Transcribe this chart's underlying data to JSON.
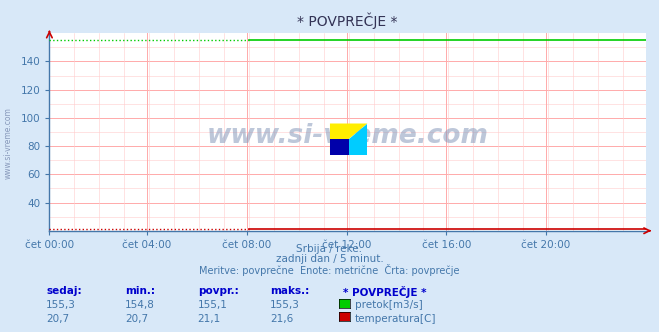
{
  "title": "* POVPREČJE *",
  "background_color": "#d8e8f8",
  "plot_bg_color": "#ffffff",
  "grid_major_color": "#ffaaaa",
  "grid_minor_color": "#ffcccc",
  "tick_color": "#4477aa",
  "watermark": "www.si-vreme.com",
  "watermark_color": "#8899bb",
  "subtitle1": "Srbija / reke.",
  "subtitle2": "zadnji dan / 5 minut.",
  "subtitle3": "Meritve: povprečne  Enote: metrične  Črta: povprečje",
  "flow_color": "#00cc00",
  "temp_color": "#cc0000",
  "x_ticks": [
    "čet 00:00",
    "čet 04:00",
    "čet 08:00",
    "čet 12:00",
    "čet 16:00",
    "čet 20:00"
  ],
  "x_tick_pos_frac": [
    0.0,
    0.1667,
    0.3333,
    0.5,
    0.6667,
    0.8333
  ],
  "total_points": 288,
  "flow_value": 155.1,
  "temp_value": 21.1,
  "flow_transition": 96,
  "ylim": [
    20,
    160
  ],
  "yticks": [
    40,
    60,
    80,
    100,
    120,
    140
  ],
  "arrow_color": "#cc0000",
  "left_watermark": "www.si-vreme.com",
  "hdr_color": "#0000cc",
  "data_color": "#4477aa",
  "row1": [
    "155,3",
    "154,8",
    "155,1",
    "155,3",
    "pretok[m3/s]"
  ],
  "row2": [
    "20,7",
    "20,7",
    "21,1",
    "21,6",
    "temperatura[C]"
  ],
  "headers": [
    "sedaj:",
    "min.:",
    "povpr.:",
    "maks.:",
    "* POVPREČJE *"
  ],
  "logo_colors": [
    "#ffee00",
    "#00ccff",
    "#0000aa"
  ],
  "subtitle_color": "#4477aa"
}
